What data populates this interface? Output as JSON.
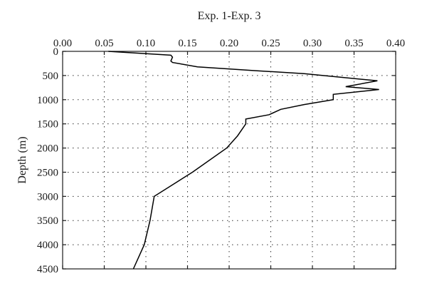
{
  "chart_data": {
    "type": "line",
    "title": "",
    "xlabel": "Exp. 1-Exp. 3",
    "ylabel": "Depth (m)",
    "xlim": [
      0.0,
      0.4
    ],
    "ylim": [
      0,
      4500
    ],
    "y_inverted": true,
    "x_axis_position": "top",
    "grid": true,
    "legend": "none",
    "xticks": [
      "0.00",
      "0.05",
      "0.10",
      "0.15",
      "0.20",
      "0.25",
      "0.30",
      "0.35",
      "0.40"
    ],
    "yticks": [
      "0",
      "500",
      "1000",
      "1500",
      "2000",
      "2500",
      "3000",
      "3500",
      "4000",
      "4500"
    ],
    "series": [
      {
        "color": "#000000",
        "x": [
          0.055,
          0.13,
          0.132,
          0.13,
          0.132,
          0.162,
          0.232,
          0.29,
          0.378,
          0.34,
          0.38,
          0.325,
          0.325,
          0.29,
          0.262,
          0.248,
          0.22,
          0.22,
          0.21,
          0.197,
          0.156,
          0.11,
          0.105,
          0.098,
          0.085
        ],
        "y": [
          0,
          80,
          120,
          200,
          230,
          320,
          400,
          460,
          610,
          730,
          790,
          890,
          1000,
          1100,
          1200,
          1310,
          1400,
          1500,
          1750,
          2000,
          2500,
          3000,
          3500,
          4000,
          4500
        ]
      }
    ]
  }
}
